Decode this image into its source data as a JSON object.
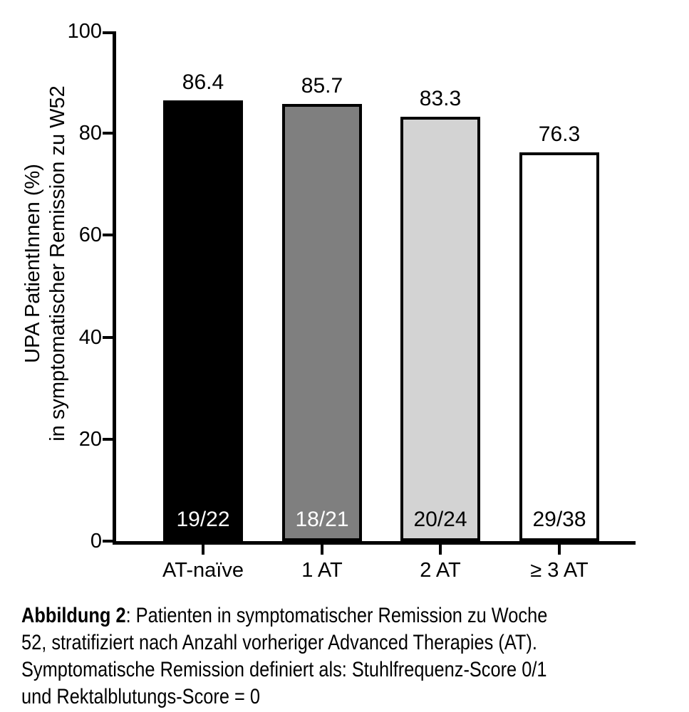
{
  "chart_data": {
    "type": "bar",
    "categories": [
      "AT-naïve",
      "1 AT",
      "2 AT",
      "≥ 3 AT"
    ],
    "values": [
      86.4,
      85.7,
      83.3,
      76.3
    ],
    "value_labels": [
      "86.4",
      "85.7",
      "83.3",
      "76.3"
    ],
    "fraction_labels": [
      "19/22",
      "18/21",
      "20/24",
      "29/38"
    ],
    "bar_colors": [
      "#000000",
      "#7f7f7f",
      "#d3d3d3",
      "#ffffff"
    ],
    "fraction_label_colors": [
      "#ffffff",
      "#ffffff",
      "#000000",
      "#000000"
    ],
    "bar_border_color": "#000000",
    "title": "",
    "xlabel": "",
    "ylabel": "UPA PatientInnen (%) in symptomatischer Remission zu W52",
    "ylabel_lines": [
      "UPA PatientInnen (%)",
      "in symptomatischer Remission zu W52"
    ],
    "ylim": [
      0,
      100
    ],
    "yticks": [
      0,
      20,
      40,
      60,
      80,
      100
    ],
    "grid": false,
    "legend": false
  },
  "caption": {
    "bold_prefix": "Abbildung 2",
    "lines": [
      ": Patienten in symptomatischer Remission zu Woche",
      "52, stratifiziert nach Anzahl vorheriger Advanced Therapies (AT).",
      "Symptomatische Remission definiert als: Stuhlfrequenz-Score 0/1",
      "und Rektalblutungs-Score = 0"
    ]
  }
}
